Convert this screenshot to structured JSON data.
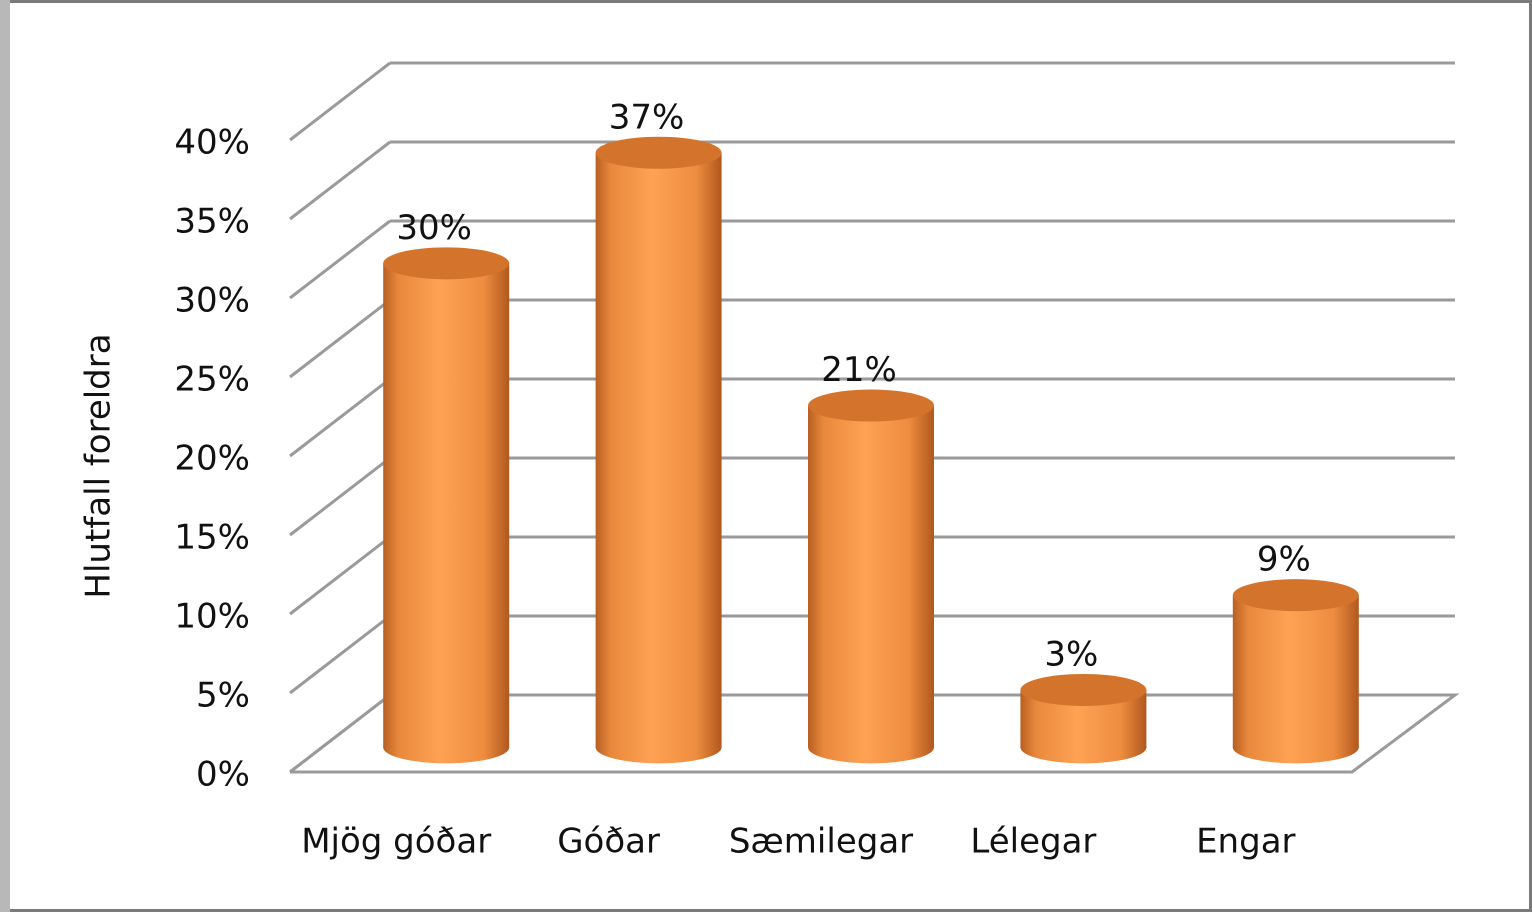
{
  "chart_data": {
    "type": "bar",
    "y_axis_label": "Hlutfall foreldra",
    "categories": [
      "Mjög góðar",
      "Góðar",
      "Sæmilegar",
      "Lélegar",
      "Engar"
    ],
    "values": [
      30,
      37,
      21,
      3,
      9
    ],
    "value_labels": [
      "30%",
      "37%",
      "21%",
      "3%",
      "9%"
    ],
    "color": "#f79646",
    "ylim": [
      0,
      40
    ],
    "yticks": [
      {
        "value": 0,
        "label": "0%"
      },
      {
        "value": 5,
        "label": "5%"
      },
      {
        "value": 10,
        "label": "10%"
      },
      {
        "value": 15,
        "label": "15%"
      },
      {
        "value": 20,
        "label": "20%"
      },
      {
        "value": 25,
        "label": "25%"
      },
      {
        "value": 30,
        "label": "30%"
      },
      {
        "value": 35,
        "label": "35%"
      },
      {
        "value": 40,
        "label": "40%"
      }
    ],
    "grid": true
  }
}
